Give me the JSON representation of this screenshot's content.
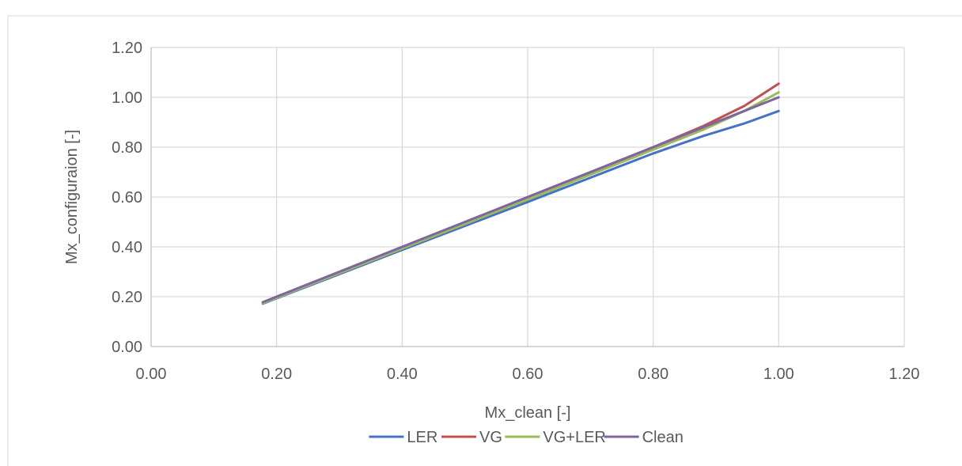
{
  "chart_data": {
    "type": "line",
    "title": "",
    "xlabel": "Mx_clean [-]",
    "ylabel": "Mx_configuraion [-]",
    "xlim": [
      0,
      1.2
    ],
    "ylim": [
      0,
      1.2
    ],
    "x_ticks": [
      "0.00",
      "0.20",
      "0.40",
      "0.60",
      "0.80",
      "1.00",
      "1.20"
    ],
    "y_ticks": [
      "0.00",
      "0.20",
      "0.40",
      "0.60",
      "0.80",
      "1.00",
      "1.20"
    ],
    "grid": true,
    "legend_position": "bottom",
    "series": [
      {
        "name": "LER",
        "color": "#4472C4",
        "x": [
          0.178,
          0.4,
          0.6,
          0.8,
          0.88,
          0.945,
          1.0
        ],
        "y": [
          0.172,
          0.388,
          0.58,
          0.775,
          0.845,
          0.895,
          0.945
        ]
      },
      {
        "name": "VG",
        "color": "#C0504D",
        "x": [
          0.178,
          0.4,
          0.6,
          0.8,
          0.88,
          0.945,
          1.0
        ],
        "y": [
          0.176,
          0.398,
          0.598,
          0.8,
          0.885,
          0.965,
          1.055
        ]
      },
      {
        "name": "VG+LER",
        "color": "#9BBB59",
        "x": [
          0.178,
          0.4,
          0.6,
          0.8,
          0.88,
          0.945,
          1.0
        ],
        "y": [
          0.174,
          0.393,
          0.59,
          0.79,
          0.87,
          0.945,
          1.02
        ]
      },
      {
        "name": "Clean",
        "color": "#8064A2",
        "x": [
          0.178,
          0.4,
          0.6,
          0.8,
          0.88,
          0.945,
          1.0
        ],
        "y": [
          0.178,
          0.4,
          0.6,
          0.8,
          0.88,
          0.945,
          1.0
        ]
      }
    ]
  },
  "colors": {
    "grid": "#D9D9D9",
    "axis": "#BFBFBF",
    "text": "#595959",
    "frame": "#D9D9D9"
  }
}
